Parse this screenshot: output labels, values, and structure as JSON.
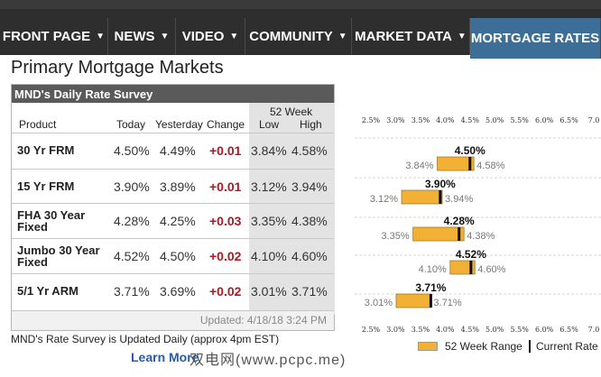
{
  "nav": {
    "items": [
      {
        "label": "FRONT PAGE"
      },
      {
        "label": "NEWS"
      },
      {
        "label": "VIDEO"
      },
      {
        "label": "COMMUNITY"
      },
      {
        "label": "MARKET DATA"
      },
      {
        "label": "MORTGAGE RATES"
      }
    ],
    "chevron": "▼"
  },
  "page_title": "Primary Mortgage Markets",
  "survey": {
    "title": "MND's Daily Rate Survey",
    "headers": {
      "product": "Product",
      "today": "Today",
      "yesterday": "Yesterday",
      "change": "Change",
      "week52": "52 Week",
      "low": "Low",
      "high": "High"
    },
    "rows": [
      {
        "product": "30 Yr FRM",
        "today": "4.50%",
        "yesterday": "4.49%",
        "change": "+0.01",
        "low": "3.84%",
        "high": "4.58%"
      },
      {
        "product": "15 Yr FRM",
        "today": "3.90%",
        "yesterday": "3.89%",
        "change": "+0.01",
        "low": "3.12%",
        "high": "3.94%"
      },
      {
        "product": "FHA 30 Year Fixed",
        "today": "4.28%",
        "yesterday": "4.25%",
        "change": "+0.03",
        "low": "3.35%",
        "high": "4.38%"
      },
      {
        "product": "Jumbo 30 Year Fixed",
        "today": "4.52%",
        "yesterday": "4.50%",
        "change": "+0.02",
        "low": "4.10%",
        "high": "4.60%"
      },
      {
        "product": "5/1 Yr ARM",
        "today": "3.71%",
        "yesterday": "3.69%",
        "change": "+0.02",
        "low": "3.01%",
        "high": "3.71%"
      }
    ],
    "updated": "Updated: 4/18/18 3:24 PM"
  },
  "note": "MND's Rate Survey is Updated Daily (approx 4pm EST)",
  "learn_link": "Learn More",
  "watermark": "双电网(www.pcpc.me)",
  "chart_data": {
    "type": "bar",
    "x_ticks": [
      "2.5%",
      "3.0%",
      "3.5%",
      "4.0%",
      "4.5%",
      "5.0%",
      "5.5%",
      "6.0%",
      "6.5%",
      "7.0"
    ],
    "xlim": [
      2.5,
      7.0
    ],
    "series": [
      {
        "low": 3.84,
        "high": 4.58,
        "current": 4.5,
        "low_label": "3.84%",
        "high_label": "4.58%",
        "current_label": "4.50%"
      },
      {
        "low": 3.12,
        "high": 3.94,
        "current": 3.9,
        "low_label": "3.12%",
        "high_label": "3.94%",
        "current_label": "3.90%"
      },
      {
        "low": 3.35,
        "high": 4.38,
        "current": 4.28,
        "low_label": "3.35%",
        "high_label": "4.38%",
        "current_label": "4.28%"
      },
      {
        "low": 4.1,
        "high": 4.6,
        "current": 4.52,
        "low_label": "4.10%",
        "high_label": "4.60%",
        "current_label": "4.52%"
      },
      {
        "low": 3.01,
        "high": 3.71,
        "current": 3.71,
        "low_label": "3.01%",
        "high_label": "3.71%",
        "current_label": "3.71%"
      }
    ],
    "legend": {
      "range": "52 Week Range",
      "current": "Current Rate"
    },
    "colors": {
      "range": "#f2b134",
      "current": "#111111"
    }
  }
}
